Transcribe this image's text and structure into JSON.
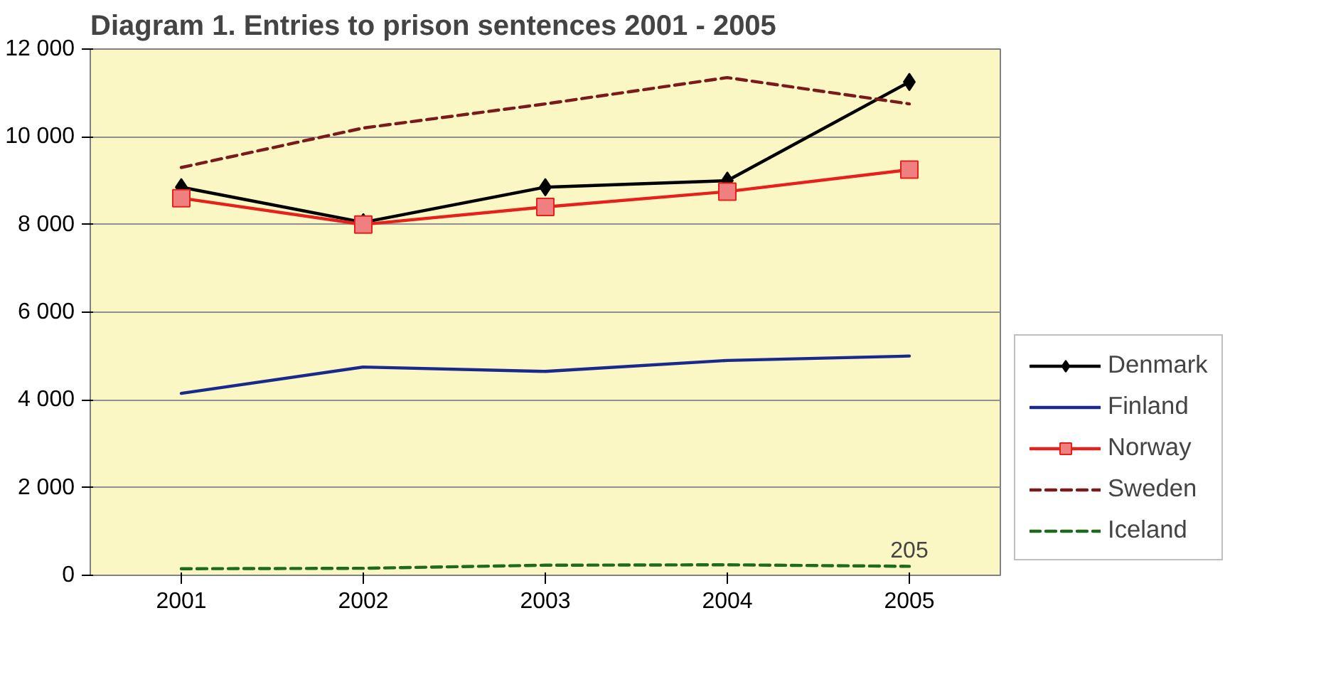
{
  "chart_data": {
    "type": "line",
    "title": "Diagram 1. Entries to prison sentences 2001 - 2005",
    "categories": [
      "2001",
      "2002",
      "2003",
      "2004",
      "2005"
    ],
    "series": [
      {
        "name": "Denmark",
        "color": "#000000",
        "marker": "diamond",
        "line_style": "solid",
        "values": [
          8850,
          8050,
          8850,
          9000,
          11250
        ]
      },
      {
        "name": "Finland",
        "color": "#1a2a8c",
        "marker": "none",
        "line_style": "solid",
        "values": [
          4150,
          4750,
          4650,
          4900,
          5000
        ]
      },
      {
        "name": "Norway",
        "color": "#e8201c",
        "marker": "square",
        "line_style": "solid",
        "values": [
          8600,
          8000,
          8400,
          8750,
          9250
        ]
      },
      {
        "name": "Sweden",
        "color": "#7a1a1a",
        "marker": "none",
        "line_style": "dashed",
        "values": [
          9300,
          10200,
          10750,
          11350,
          10750
        ]
      },
      {
        "name": "Iceland",
        "color": "#1e6b1e",
        "marker": "none",
        "line_style": "dashed",
        "values": [
          150,
          160,
          230,
          240,
          205
        ],
        "value_labels": [
          null,
          null,
          null,
          null,
          "205"
        ]
      }
    ],
    "ylim": [
      0,
      12000
    ],
    "yticks": [
      0,
      {
        "value": 2000,
        "label": "2 000"
      },
      {
        "value": 4000,
        "label": "4 000"
      },
      {
        "value": 6000,
        "label": "6 000"
      },
      {
        "value": 8000,
        "label": "8 000"
      },
      {
        "value": 10000,
        "label": "10 000"
      },
      {
        "value": 12000,
        "label": "12 000"
      }
    ],
    "grid": "y",
    "legend": "right"
  }
}
